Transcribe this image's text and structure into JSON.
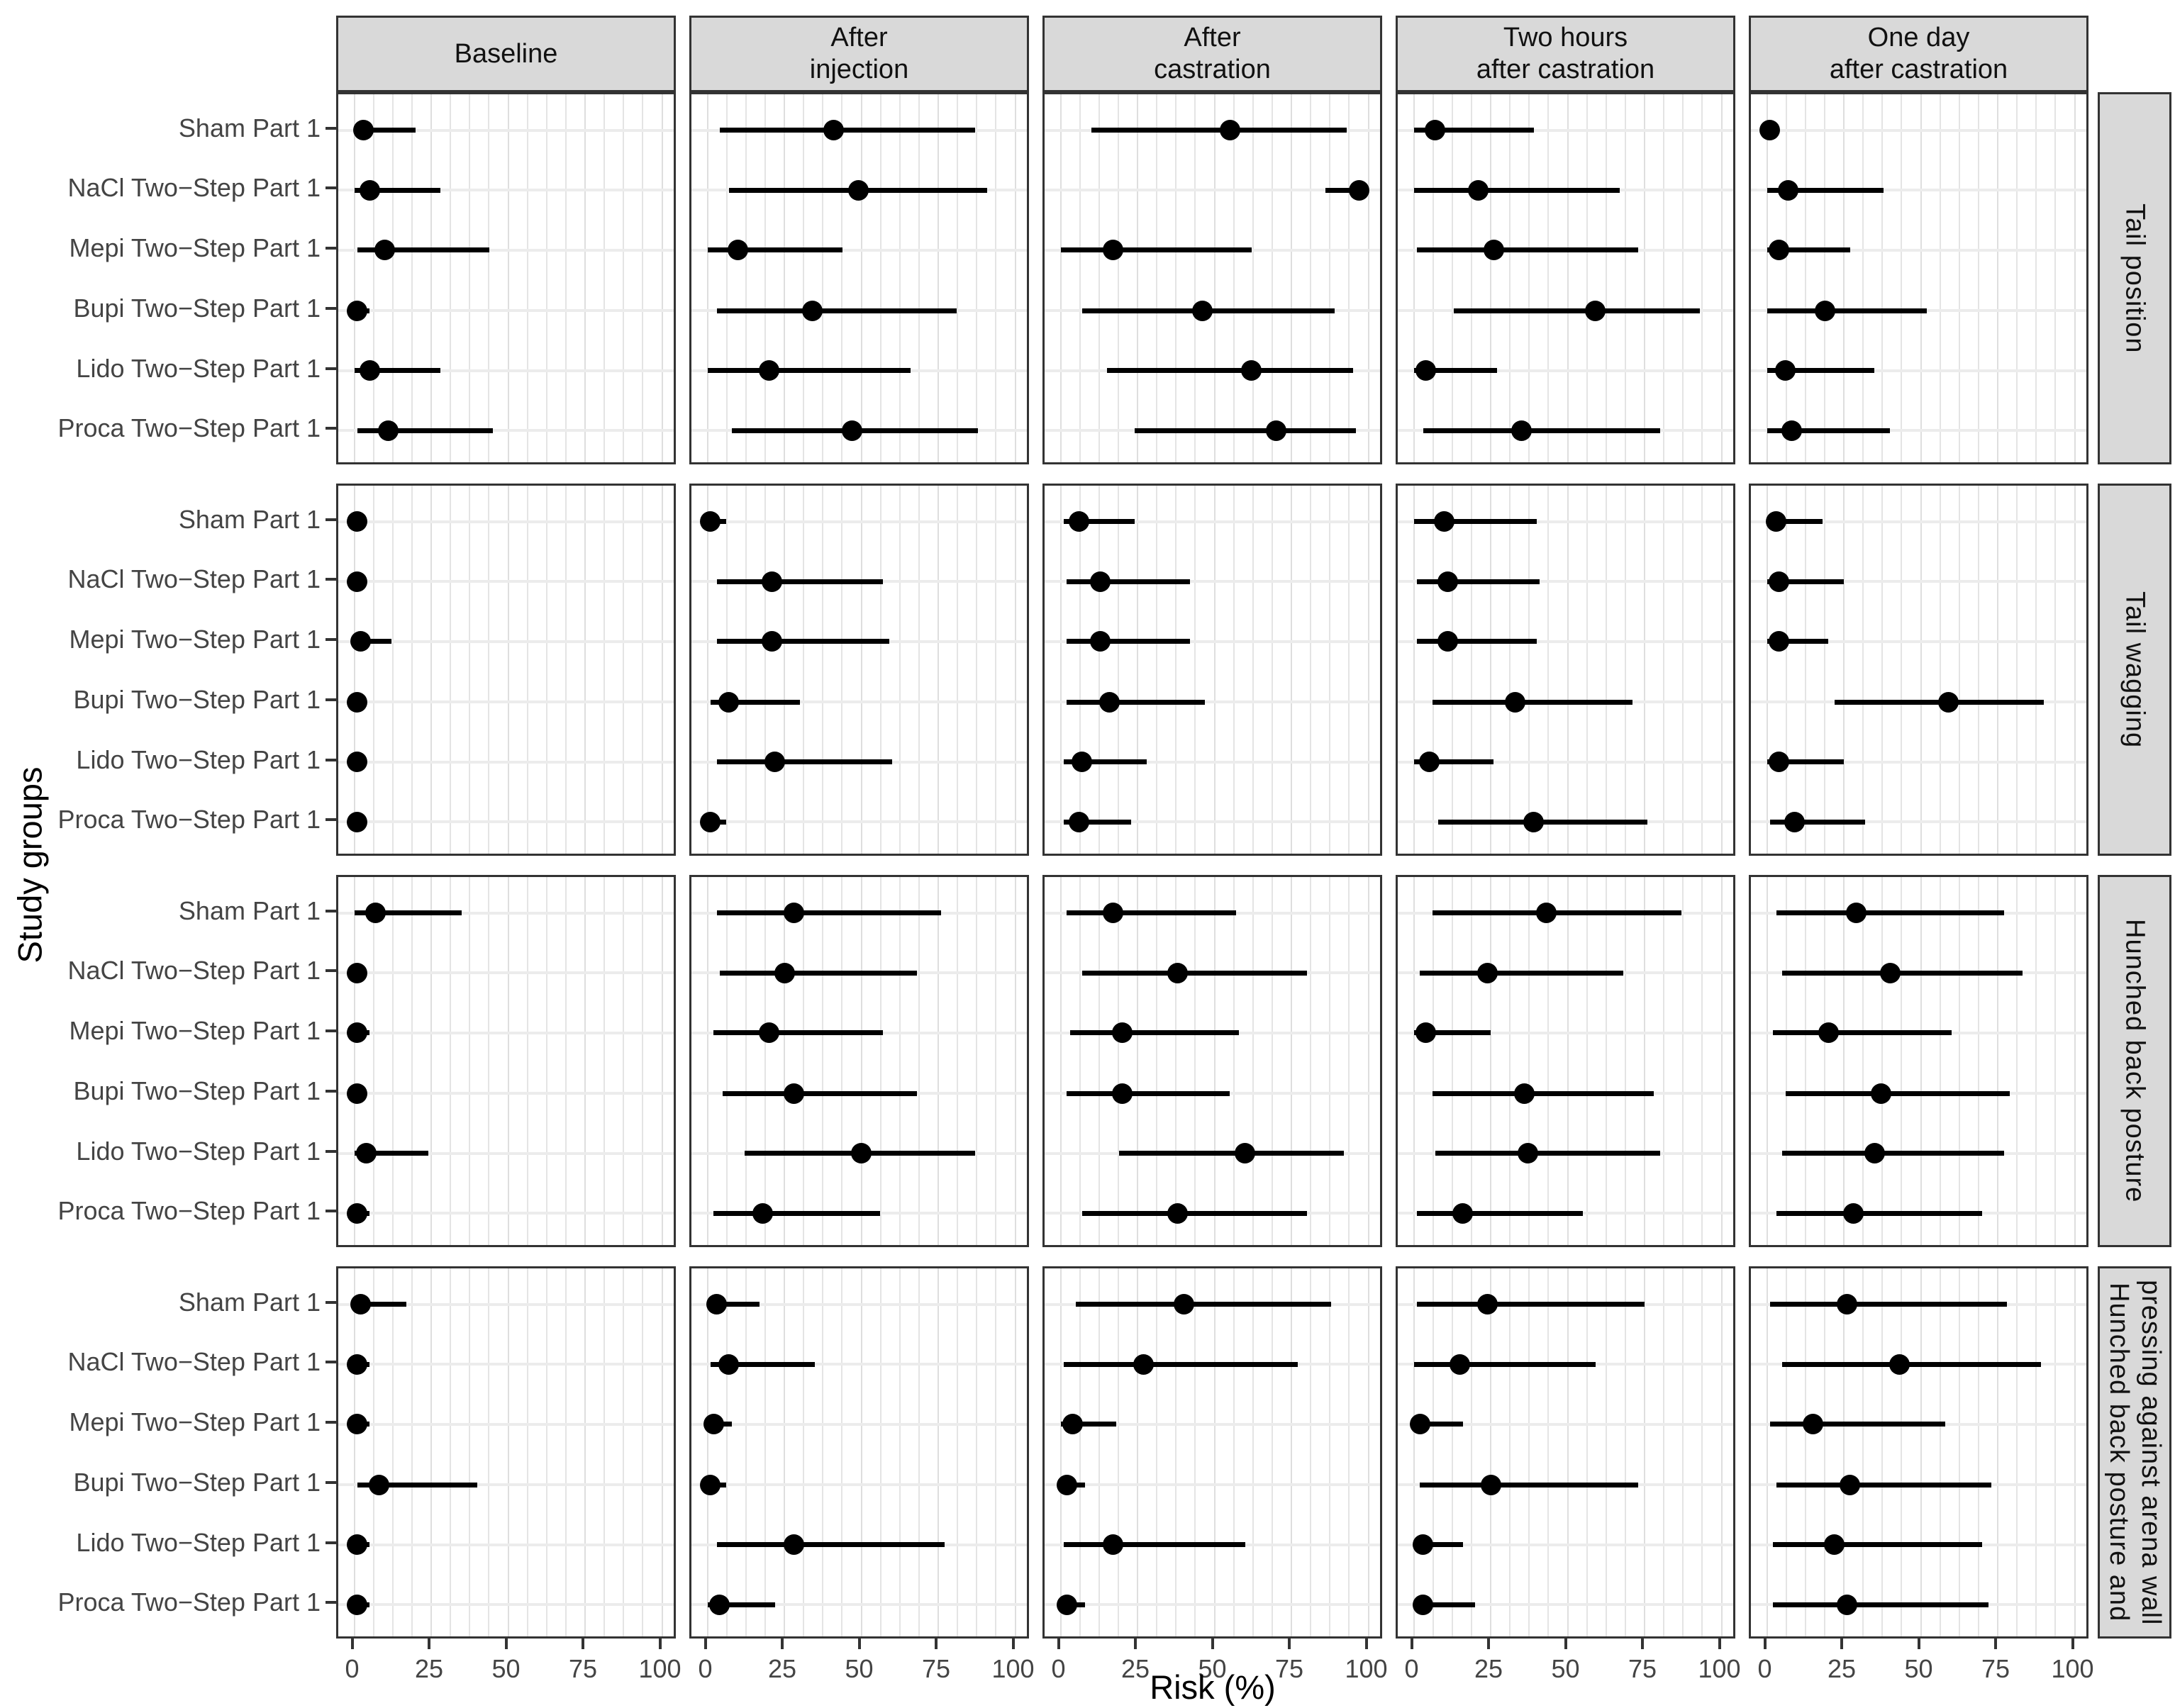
{
  "chart_data": {
    "type": "pointrange",
    "title": "",
    "xlabel": "Risk (%)",
    "ylabel": "Study groups",
    "xlim": [
      0,
      100
    ],
    "x_ticks": [
      0,
      25,
      50,
      75,
      100
    ],
    "x_minor_step": 6.25,
    "grid": "light gray vertical lines every 6.25%, light gray horizontal line per group",
    "legend_position": "none",
    "col_facets": [
      "Baseline",
      "After\ninjection",
      "After\ncastration",
      "Two hours\nafter castration",
      "One day\nafter castration"
    ],
    "row_facets": [
      "Tail position",
      "Tail wagging",
      "Hunched back posture",
      "Hunched back posture and\npressing against arena wall"
    ],
    "groups": [
      "Sham Part 1",
      "NaCl Two−Step Part 1",
      "Mepi Two−Step Part 1",
      "Bupi Two−Step Part 1",
      "Lido Two−Step Part 1",
      "Proca Two−Step Part 1"
    ],
    "values_format": "[estimate, ci_low, ci_high] in Risk %, groups ordered top to bottom",
    "panels": [
      {
        "row": "Tail position",
        "col": "Baseline",
        "points": [
          [
            3,
            0,
            20
          ],
          [
            5,
            0,
            28
          ],
          [
            10,
            1,
            44
          ],
          [
            1,
            0,
            5
          ],
          [
            5,
            0,
            28
          ],
          [
            11,
            1,
            45
          ]
        ]
      },
      {
        "row": "Tail position",
        "col": "After injection",
        "points": [
          [
            41,
            4,
            87
          ],
          [
            49,
            7,
            91
          ],
          [
            10,
            0,
            44
          ],
          [
            34,
            3,
            81
          ],
          [
            20,
            0,
            66
          ],
          [
            47,
            8,
            88
          ]
        ]
      },
      {
        "row": "Tail position",
        "col": "After castration",
        "points": [
          [
            55,
            10,
            93
          ],
          [
            97,
            86,
            100
          ],
          [
            17,
            0,
            62
          ],
          [
            46,
            7,
            89
          ],
          [
            62,
            15,
            95
          ],
          [
            70,
            24,
            96
          ]
        ]
      },
      {
        "row": "Tail position",
        "col": "Two hours after castration",
        "points": [
          [
            7,
            0,
            39
          ],
          [
            21,
            0,
            67
          ],
          [
            26,
            1,
            73
          ],
          [
            59,
            13,
            93
          ],
          [
            4,
            0,
            27
          ],
          [
            35,
            3,
            80
          ]
        ]
      },
      {
        "row": "Tail position",
        "col": "One day after castration",
        "points": [
          [
            1,
            0,
            4
          ],
          [
            7,
            0,
            38
          ],
          [
            4,
            0,
            27
          ],
          [
            19,
            0,
            52
          ],
          [
            6,
            0,
            35
          ],
          [
            8,
            0,
            40
          ]
        ]
      },
      {
        "row": "Tail wagging",
        "col": "Baseline",
        "points": [
          [
            1,
            0,
            4
          ],
          [
            1,
            0,
            4
          ],
          [
            2,
            0,
            12
          ],
          [
            1,
            0,
            4
          ],
          [
            1,
            0,
            4
          ],
          [
            1,
            0,
            4
          ]
        ]
      },
      {
        "row": "Tail wagging",
        "col": "After injection",
        "points": [
          [
            1,
            0,
            6
          ],
          [
            21,
            3,
            57
          ],
          [
            21,
            3,
            59
          ],
          [
            7,
            1,
            30
          ],
          [
            22,
            3,
            60
          ],
          [
            1,
            0,
            6
          ]
        ]
      },
      {
        "row": "Tail wagging",
        "col": "After castration",
        "points": [
          [
            6,
            1,
            24
          ],
          [
            13,
            2,
            42
          ],
          [
            13,
            2,
            42
          ],
          [
            16,
            2,
            47
          ],
          [
            7,
            1,
            28
          ],
          [
            6,
            1,
            23
          ]
        ]
      },
      {
        "row": "Tail wagging",
        "col": "Two hours after castration",
        "points": [
          [
            10,
            0,
            40
          ],
          [
            11,
            1,
            41
          ],
          [
            11,
            1,
            40
          ],
          [
            33,
            6,
            71
          ],
          [
            5,
            0,
            26
          ],
          [
            39,
            8,
            76
          ]
        ]
      },
      {
        "row": "Tail wagging",
        "col": "One day after castration",
        "points": [
          [
            3,
            0,
            18
          ],
          [
            4,
            0,
            25
          ],
          [
            4,
            0,
            20
          ],
          [
            59,
            22,
            90
          ],
          [
            4,
            0,
            25
          ],
          [
            9,
            1,
            32
          ]
        ]
      },
      {
        "row": "Hunched back posture",
        "col": "Baseline",
        "points": [
          [
            7,
            0,
            35
          ],
          [
            1,
            0,
            4
          ],
          [
            1,
            0,
            5
          ],
          [
            1,
            0,
            4
          ],
          [
            4,
            0,
            24
          ],
          [
            1,
            0,
            5
          ]
        ]
      },
      {
        "row": "Hunched back posture",
        "col": "After injection",
        "points": [
          [
            28,
            3,
            76
          ],
          [
            25,
            4,
            68
          ],
          [
            20,
            2,
            57
          ],
          [
            28,
            5,
            68
          ],
          [
            50,
            12,
            87
          ],
          [
            18,
            2,
            56
          ]
        ]
      },
      {
        "row": "Hunched back posture",
        "col": "After castration",
        "points": [
          [
            17,
            2,
            57
          ],
          [
            38,
            7,
            80
          ],
          [
            20,
            3,
            58
          ],
          [
            20,
            2,
            55
          ],
          [
            60,
            19,
            92
          ],
          [
            38,
            7,
            80
          ]
        ]
      },
      {
        "row": "Hunched back posture",
        "col": "Two hours after castration",
        "points": [
          [
            43,
            6,
            87
          ],
          [
            24,
            2,
            68
          ],
          [
            4,
            0,
            25
          ],
          [
            36,
            6,
            78
          ],
          [
            37,
            7,
            80
          ],
          [
            16,
            1,
            55
          ]
        ]
      },
      {
        "row": "Hunched back posture",
        "col": "One day after castration",
        "points": [
          [
            29,
            3,
            77
          ],
          [
            40,
            5,
            83
          ],
          [
            20,
            2,
            60
          ],
          [
            37,
            6,
            79
          ],
          [
            35,
            5,
            77
          ],
          [
            28,
            3,
            70
          ]
        ]
      },
      {
        "row": "Hunched back posture and pressing against arena wall",
        "col": "Baseline",
        "points": [
          [
            2,
            0,
            17
          ],
          [
            1,
            0,
            5
          ],
          [
            1,
            0,
            5
          ],
          [
            8,
            1,
            40
          ],
          [
            1,
            0,
            5
          ],
          [
            1,
            0,
            5
          ]
        ]
      },
      {
        "row": "Hunched back posture and pressing against arena wall",
        "col": "After injection",
        "points": [
          [
            3,
            0,
            17
          ],
          [
            7,
            1,
            35
          ],
          [
            2,
            0,
            8
          ],
          [
            1,
            0,
            6
          ],
          [
            28,
            3,
            77
          ],
          [
            4,
            0,
            22
          ]
        ]
      },
      {
        "row": "Hunched back posture and pressing against arena wall",
        "col": "After castration",
        "points": [
          [
            40,
            5,
            88
          ],
          [
            27,
            1,
            77
          ],
          [
            4,
            0,
            18
          ],
          [
            2,
            0,
            8
          ],
          [
            17,
            1,
            60
          ],
          [
            2,
            0,
            8
          ]
        ]
      },
      {
        "row": "Hunched back posture and pressing against arena wall",
        "col": "Two hours after castration",
        "points": [
          [
            24,
            1,
            75
          ],
          [
            15,
            0,
            59
          ],
          [
            2,
            0,
            16
          ],
          [
            25,
            2,
            73
          ],
          [
            3,
            0,
            16
          ],
          [
            3,
            0,
            20
          ]
        ]
      },
      {
        "row": "Hunched back posture and pressing against arena wall",
        "col": "One day after castration",
        "points": [
          [
            26,
            1,
            78
          ],
          [
            43,
            5,
            89
          ],
          [
            15,
            1,
            58
          ],
          [
            27,
            3,
            73
          ],
          [
            22,
            2,
            70
          ],
          [
            26,
            2,
            72
          ]
        ]
      }
    ],
    "colors": {
      "point": "#000000",
      "interval_line": "#000000",
      "strip_background": "#d9d9d9",
      "panel_border": "#333333",
      "gridline": "#e4e4e4",
      "label_text": "#444444",
      "title_text": "#000000"
    }
  }
}
